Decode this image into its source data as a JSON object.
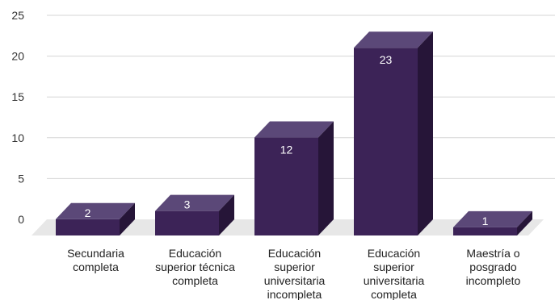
{
  "chart_data": {
    "type": "bar",
    "style": "3d",
    "categories": [
      [
        "Secundaria",
        "completa"
      ],
      [
        "Educación",
        "superior técnica",
        "completa"
      ],
      [
        "Educación",
        "superior",
        "universitaria",
        "incompleta"
      ],
      [
        "Educación",
        "superior",
        "universitaria",
        "completa"
      ],
      [
        "Maestría o",
        "posgrado",
        "incompleto"
      ]
    ],
    "values": [
      2,
      3,
      12,
      23,
      1
    ],
    "data_labels": [
      "2",
      "3",
      "12",
      "23",
      "1"
    ],
    "yticks": [
      "0",
      "5",
      "10",
      "15",
      "20",
      "25"
    ],
    "ylim": [
      0,
      25
    ],
    "grid": true,
    "colors": {
      "front": "#3c2357",
      "top": "#5b4878",
      "side": "#261538",
      "floor": "#e7e7e7",
      "grid": "#d6d6d6"
    }
  }
}
